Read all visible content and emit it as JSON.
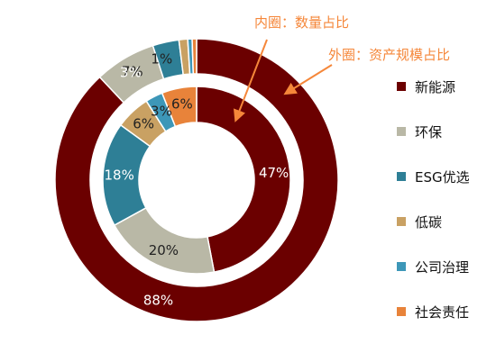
{
  "chart_data": {
    "type": "pie",
    "categories": [
      "新能源",
      "环保",
      "ESG优选",
      "低碳",
      "公司治理",
      "社会责任"
    ],
    "series": [
      {
        "name": "内圈：数量占比",
        "values": [
          47,
          20,
          18,
          6,
          3,
          6
        ],
        "labels": [
          "47%",
          "20%",
          "18%",
          "6%",
          "3%",
          "6%"
        ]
      },
      {
        "name": "外圈：资产规模占比",
        "values": [
          88,
          7,
          3,
          1,
          0.5,
          0.5
        ],
        "labels": [
          "88%",
          "7%",
          "3%",
          "1%",
          "",
          ""
        ]
      }
    ],
    "colors": [
      "#6b0000",
      "#b9b8a6",
      "#2e7f96",
      "#c9a163",
      "#3d97b8",
      "#e8833a"
    ],
    "annotation_color": "#f5873a",
    "legend_position": "right"
  }
}
